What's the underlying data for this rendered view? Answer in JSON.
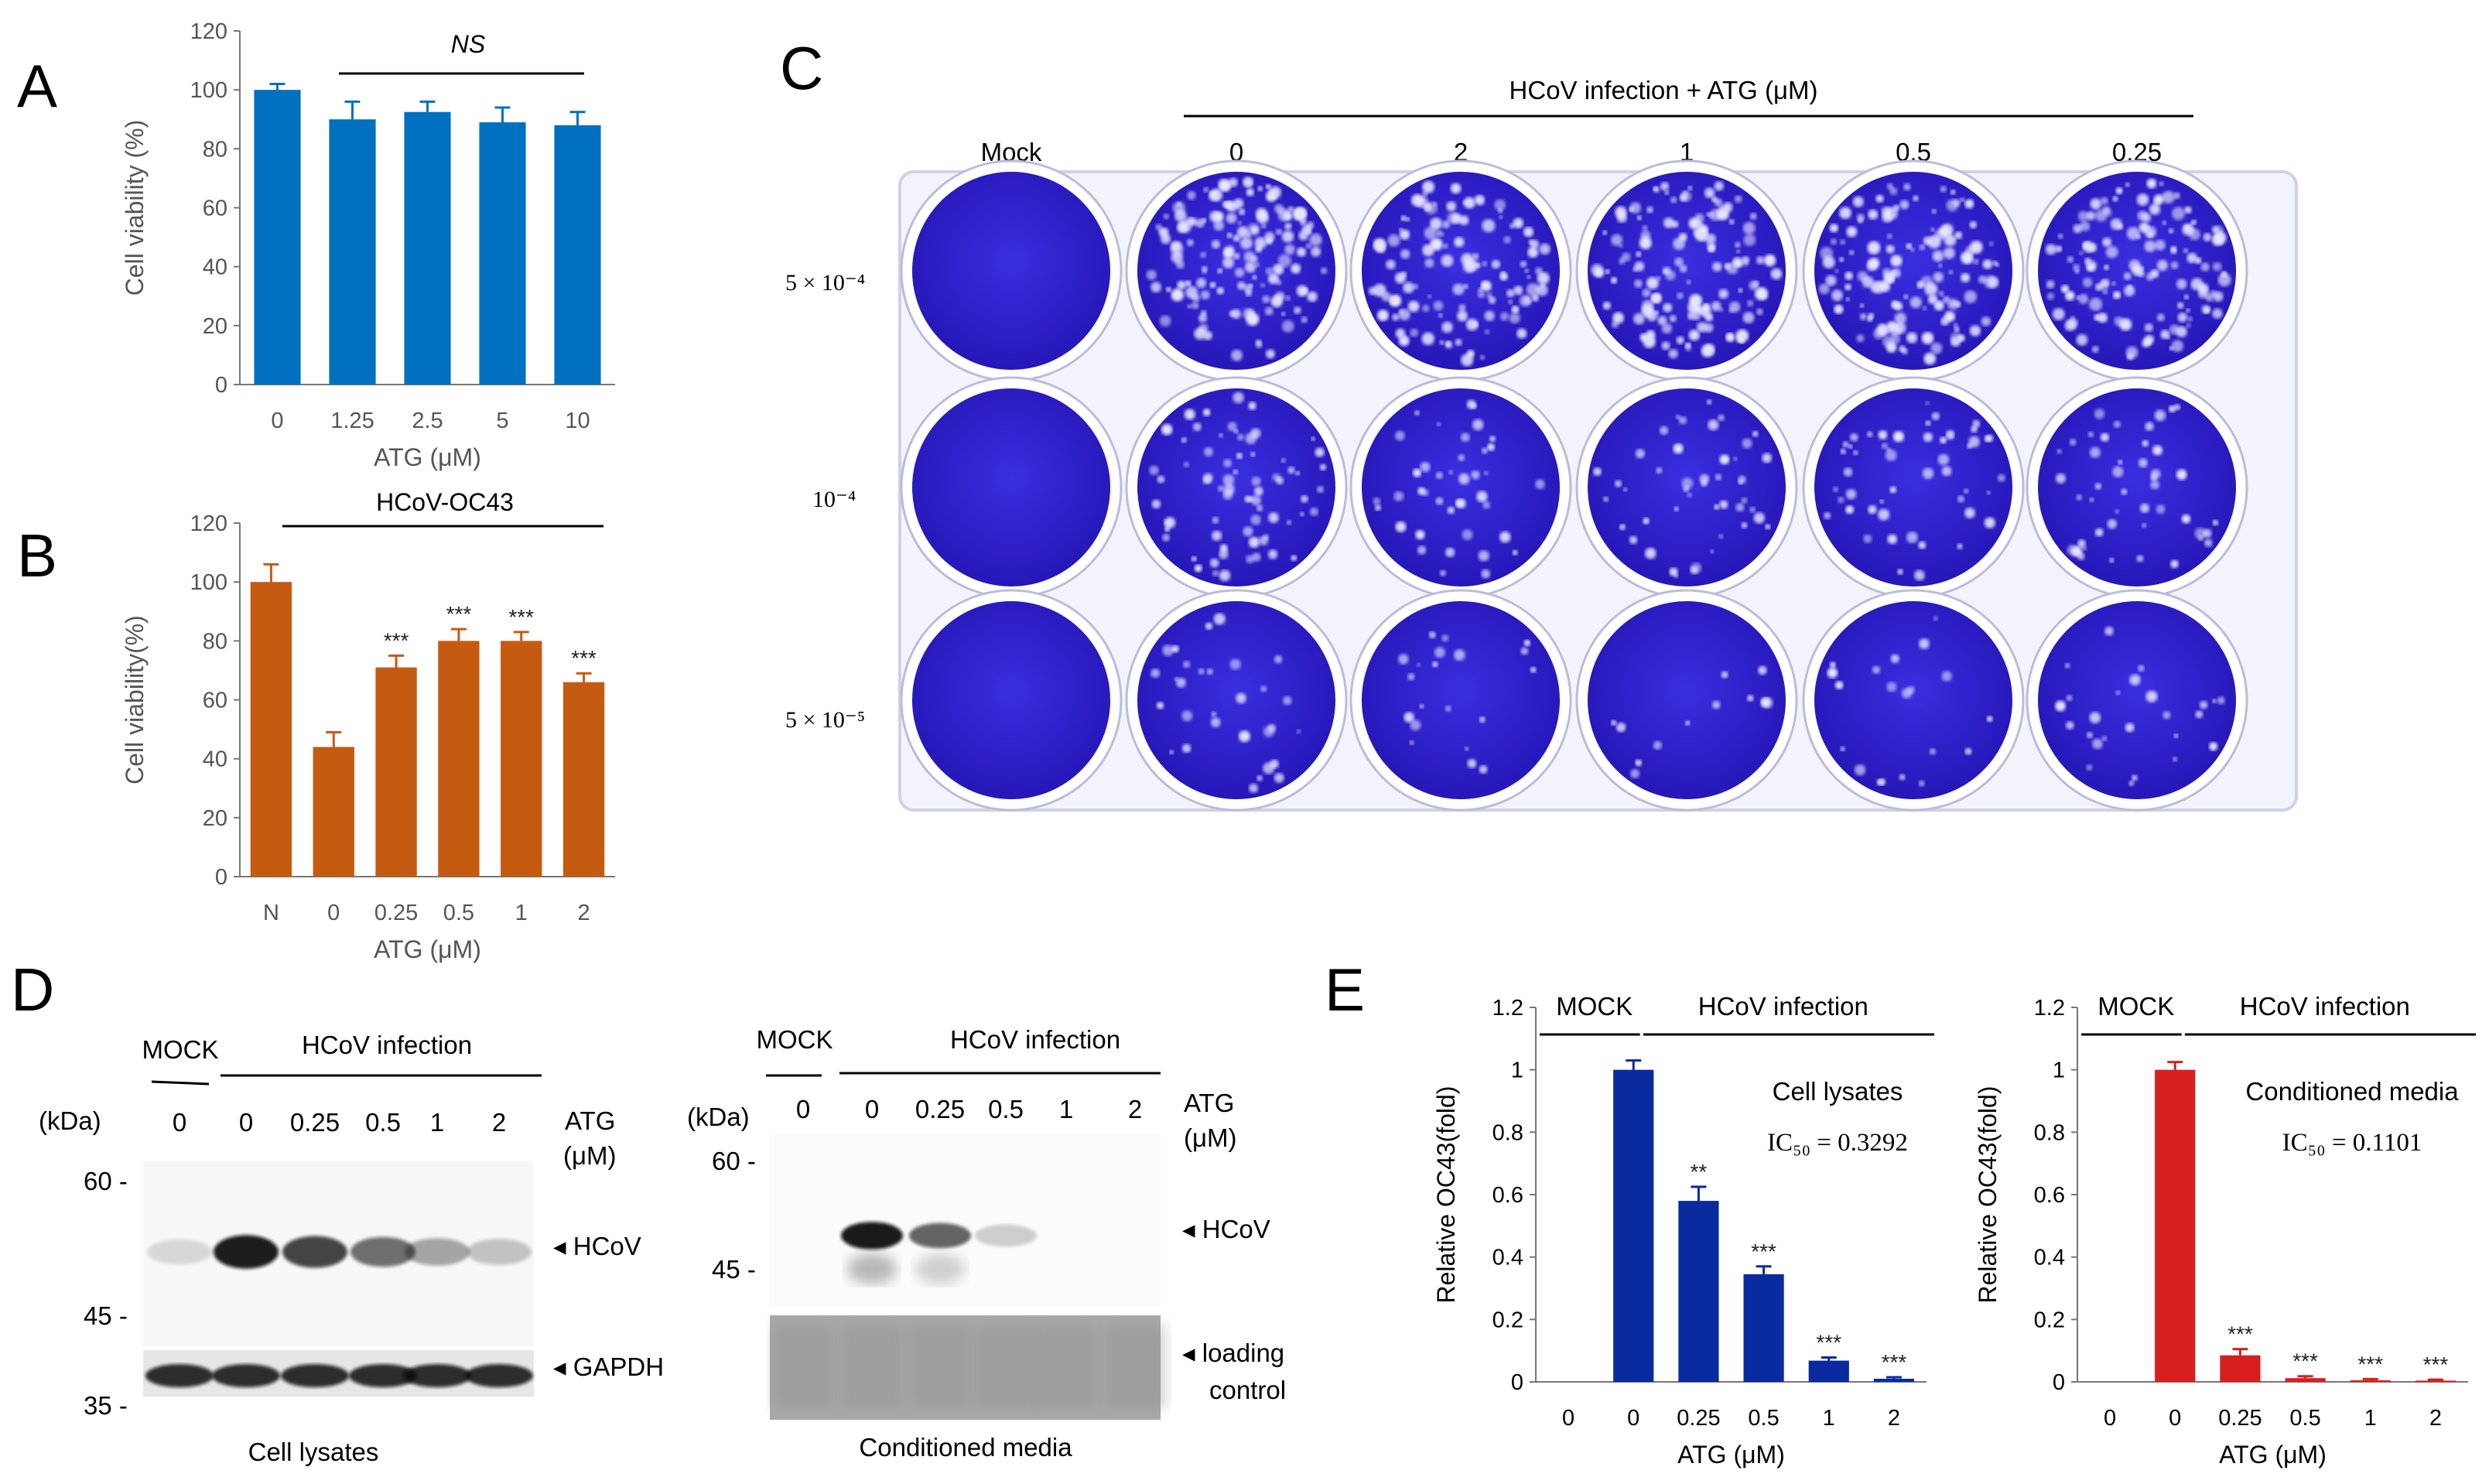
{
  "panel_letters": [
    "A",
    "B",
    "C",
    "D",
    "E"
  ],
  "colors": {
    "A": "#0070c0",
    "B": "#c55a11",
    "E1": "#0a2aa0",
    "E2": "#d81e1e",
    "plaque": "#2a1fc8"
  },
  "chart_data": [
    {
      "id": "A",
      "type": "bar",
      "categories": [
        "0",
        "1.25",
        "2.5",
        "5",
        "10"
      ],
      "values": [
        100,
        90,
        92.5,
        89,
        88
      ],
      "errors": [
        2,
        6,
        3.5,
        5,
        4.5
      ],
      "ylabel": "Cell viability (%)",
      "xlabel": "ATG (μM)",
      "ylim": [
        0,
        120
      ],
      "yticks": [
        "0",
        "20",
        "40",
        "60",
        "80",
        "100",
        "120"
      ],
      "annotation": "NS",
      "significance": [
        "",
        "",
        "",
        "",
        ""
      ]
    },
    {
      "id": "B",
      "type": "bar",
      "categories": [
        "N",
        "0",
        "0.25",
        "0.5",
        "1",
        "2"
      ],
      "values": [
        100,
        44,
        71,
        80,
        80,
        66
      ],
      "errors": [
        6,
        5,
        4,
        4,
        3,
        3
      ],
      "ylabel": "Cell viability(%)",
      "xlabel": "ATG (μM)",
      "ylim": [
        0,
        120
      ],
      "yticks": [
        "0",
        "20",
        "40",
        "60",
        "80",
        "100",
        "120"
      ],
      "annotation": "HCoV-OC43",
      "significance": [
        "",
        "",
        "***",
        "***",
        "***",
        "***"
      ]
    },
    {
      "id": "E1",
      "type": "bar",
      "categories": [
        "0",
        "0",
        "0.25",
        "0.5",
        "1",
        "2"
      ],
      "values": [
        0,
        1.0,
        0.58,
        0.345,
        0.068,
        0.01
      ],
      "errors": [
        0,
        0.03,
        0.045,
        0.025,
        0.01,
        0.005
      ],
      "ylabel": "Relative OC43(fold)",
      "xlabel": "ATG (μM)",
      "ylim": [
        0,
        1.2
      ],
      "yticks": [
        "0",
        "0.2",
        "0.4",
        "0.6",
        "0.8",
        "1",
        "1.2"
      ],
      "groups": [
        "MOCK",
        "HCoV infection"
      ],
      "inset": "Cell lysates",
      "ic50": "IC₅₀ = 0.3292",
      "significance": [
        "",
        "",
        "**",
        "***",
        "***",
        "***"
      ]
    },
    {
      "id": "E2",
      "type": "bar",
      "categories": [
        "0",
        "0",
        "0.25",
        "0.5",
        "1",
        "2"
      ],
      "values": [
        0,
        1.0,
        0.085,
        0.012,
        0.005,
        0.004
      ],
      "errors": [
        0,
        0.025,
        0.02,
        0.006,
        0.004,
        0.003
      ],
      "ylabel": "Relative OC43(fold)",
      "xlabel": "ATG (μM)",
      "ylim": [
        0,
        1.2
      ],
      "yticks": [
        "0",
        "0.2",
        "0.4",
        "0.6",
        "0.8",
        "1",
        "1.2"
      ],
      "groups": [
        "MOCK",
        "HCoV infection"
      ],
      "inset": "Conditioned media",
      "ic50": "IC₅₀ = 0.1101",
      "significance": [
        "",
        "",
        "***",
        "***",
        "***",
        "***"
      ]
    }
  ],
  "panelC": {
    "header": "HCoV infection + ATG (μM)",
    "columns": [
      "Mock",
      "0",
      "2",
      "1",
      "0.5",
      "0.25"
    ],
    "rows": [
      "5 × 10⁻⁴",
      "10⁻⁴",
      "5 × 10⁻⁵"
    ],
    "plaque_density": [
      [
        0,
        150,
        120,
        140,
        130,
        135
      ],
      [
        0,
        70,
        40,
        45,
        50,
        45
      ],
      [
        0,
        30,
        20,
        12,
        20,
        25
      ]
    ]
  },
  "panelD": {
    "left": {
      "mock": "MOCK",
      "infection": "HCoV infection",
      "kda": "(kDa)",
      "lanes": [
        "0",
        "0",
        "0.25",
        "0.5",
        "1",
        "2"
      ],
      "atg": [
        "ATG",
        "(μM)"
      ],
      "markers": [
        "60 -",
        "45 -",
        "35 -"
      ],
      "bands": [
        "◂ HCoV",
        "◂ GAPDH"
      ],
      "caption": "Cell lysates",
      "hcov_intensity": [
        0.05,
        0.95,
        0.75,
        0.55,
        0.3,
        0.15
      ]
    },
    "right": {
      "mock": "MOCK",
      "infection": "HCoV infection",
      "kda": "(kDa)",
      "lanes": [
        "0",
        "0",
        "0.25",
        "0.5",
        "1",
        "2"
      ],
      "atg": [
        "ATG",
        "(μM)"
      ],
      "markers": [
        "60 -",
        "45 -"
      ],
      "bands": [
        "◂ HCoV",
        "◂ loading",
        "control"
      ],
      "caption": "Conditioned media",
      "hcov_intensity": [
        0,
        0.95,
        0.6,
        0.1,
        0,
        0
      ]
    }
  }
}
